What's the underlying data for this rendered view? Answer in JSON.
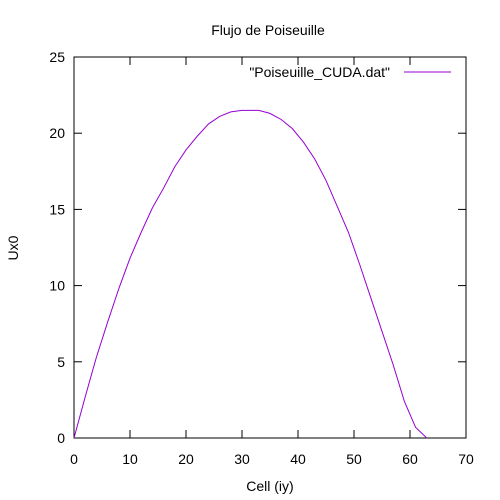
{
  "chart_data": {
    "type": "line",
    "title": "Flujo de Poiseuille",
    "xlabel": "Cell (iy)",
    "ylabel": "Ux0",
    "xlim": [
      0,
      70
    ],
    "ylim": [
      0,
      25
    ],
    "xticks": [
      0,
      10,
      20,
      30,
      40,
      50,
      60,
      70
    ],
    "yticks": [
      0,
      5,
      10,
      15,
      20,
      25
    ],
    "grid": false,
    "legend_position": "top-right",
    "series": [
      {
        "name": "\"Poiseuille_CUDA.dat\"",
        "color": "#9400d3",
        "x": [
          0,
          2,
          4,
          6,
          8,
          10,
          12,
          14,
          16,
          18,
          20,
          22,
          24,
          26,
          28,
          30,
          31.5,
          33,
          35,
          37,
          39,
          41,
          43,
          45,
          47,
          49,
          51,
          53,
          55,
          57,
          59,
          61,
          63
        ],
        "y": [
          0,
          2.7,
          5.3,
          7.6,
          9.8,
          11.8,
          13.5,
          15.1,
          16.4,
          17.8,
          18.9,
          19.8,
          20.6,
          21.1,
          21.4,
          21.5,
          21.5,
          21.5,
          21.3,
          20.9,
          20.3,
          19.4,
          18.3,
          16.9,
          15.2,
          13.5,
          11.4,
          9.2,
          7.0,
          4.8,
          2.4,
          0.7,
          0
        ]
      }
    ]
  }
}
